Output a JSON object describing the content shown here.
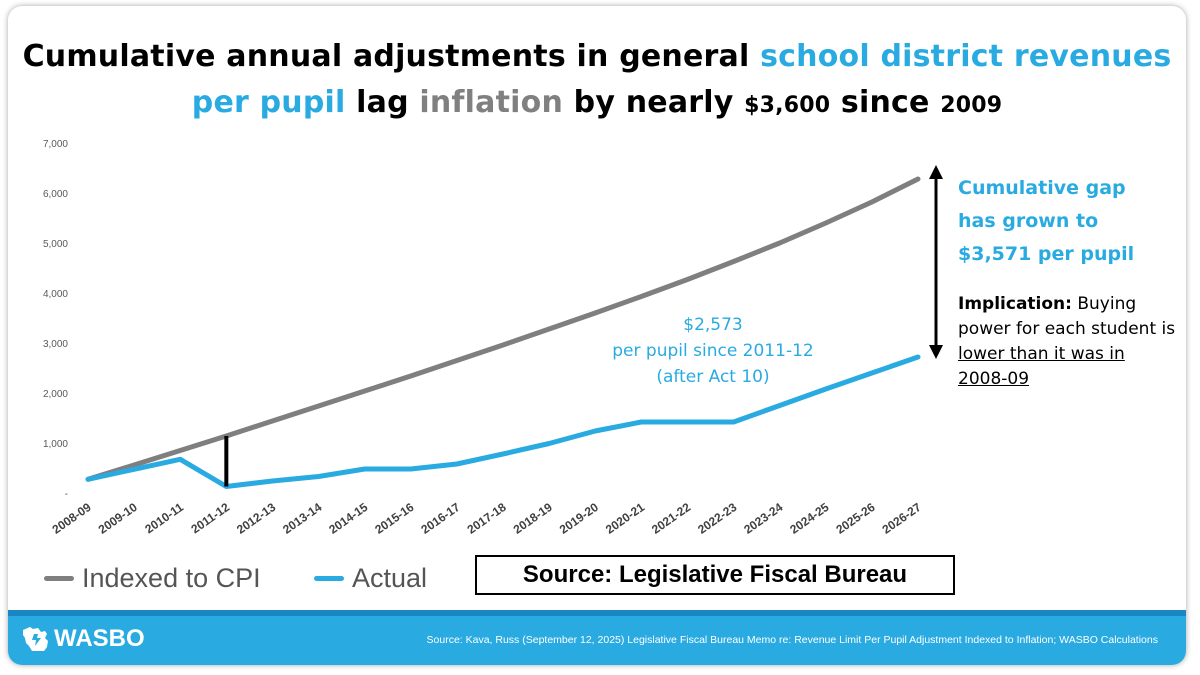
{
  "title": {
    "part1": "Cumulative annual adjustments in general ",
    "part2": "school district revenues per pupil",
    "part3": " lag ",
    "part4": "inflation",
    "part5": " by nearly ",
    "part6": "$3,600",
    "part7": " since ",
    "part8": "2009"
  },
  "colors": {
    "cpi": "#7f7f7f",
    "actual": "#29abe2",
    "footer": "#29abe2"
  },
  "chart_data": {
    "type": "line",
    "categories": [
      "2008-09",
      "2009-10",
      "2010-11",
      "2011-12",
      "2012-13",
      "2013-14",
      "2014-15",
      "2015-16",
      "2016-17",
      "2017-18",
      "2018-19",
      "2019-20",
      "2020-21",
      "2021-22",
      "2022-23",
      "2023-24",
      "2024-25",
      "2025-26",
      "2026-27"
    ],
    "series": [
      {
        "name": "Indexed to CPI",
        "values": [
          275,
          560,
          850,
          1140,
          1440,
          1740,
          2040,
          2340,
          2650,
          2960,
          3280,
          3600,
          3930,
          4270,
          4630,
          5000,
          5400,
          5820,
          6280
        ]
      },
      {
        "name": "Actual",
        "values": [
          275,
          475,
          675,
          130,
          240,
          330,
          480,
          480,
          580,
          780,
          990,
          1240,
          1420,
          1420,
          1420,
          1750,
          2080,
          2400,
          2720
        ]
      }
    ],
    "y_ticks": [
      "-",
      "1,000",
      "2,000",
      "3,000",
      "4,000",
      "5,000",
      "6,000",
      "7,000"
    ],
    "ylim": [
      0,
      7000
    ],
    "grid": false,
    "legend_position": "bottom-left",
    "annotations": {
      "gap_note": "Cumulative gap has grown to $3,571 per pupil",
      "mid_note_line1": "$2,573",
      "mid_note_line2": "per pupil since 2011-12",
      "mid_note_line3": "(after Act 10)",
      "impl_bold": "Implication:",
      "impl_text1": " Buying power for each student is ",
      "impl_underline": "lower than it was in 2008-09"
    }
  },
  "legend": {
    "cpi_label": "Indexed to CPI",
    "actual_label": "Actual"
  },
  "source_box": "Source: Legislative Fiscal Bureau",
  "footer": {
    "logo": "WASBO",
    "source": "Source: Kava, Russ (September 12, 2025) Legislative Fiscal Bureau Memo re: Revenue Limit Per Pupil Adjustment Indexed to Inflation; WASBO Calculations"
  }
}
